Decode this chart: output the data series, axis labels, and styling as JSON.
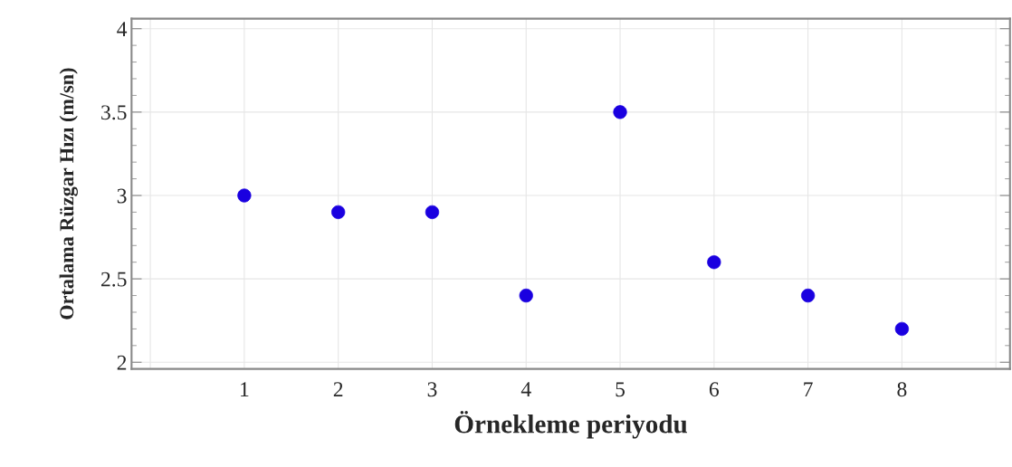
{
  "chart_data": {
    "type": "scatter",
    "xlabel": "Örnekleme periyodu",
    "ylabel": "Ortalama Rüzgar Hızı (m/sn)",
    "x": [
      1,
      2,
      3,
      4,
      5,
      6,
      7,
      8
    ],
    "series": [
      {
        "color": "#1a00e0",
        "values": [
          3.0,
          2.9,
          2.9,
          2.4,
          3.5,
          2.6,
          2.4,
          2.2
        ]
      }
    ],
    "xlim": [
      -0.2,
      9.15
    ],
    "ylim": [
      1.96,
      4.06
    ],
    "xticks": [
      {
        "value": 0,
        "label": null
      },
      1,
      2,
      3,
      4,
      5,
      6,
      7,
      8,
      {
        "value": 9,
        "label": null
      }
    ],
    "yticks": [
      2,
      2.5,
      3,
      3.5,
      4
    ],
    "grid": true,
    "marker": "circle"
  }
}
